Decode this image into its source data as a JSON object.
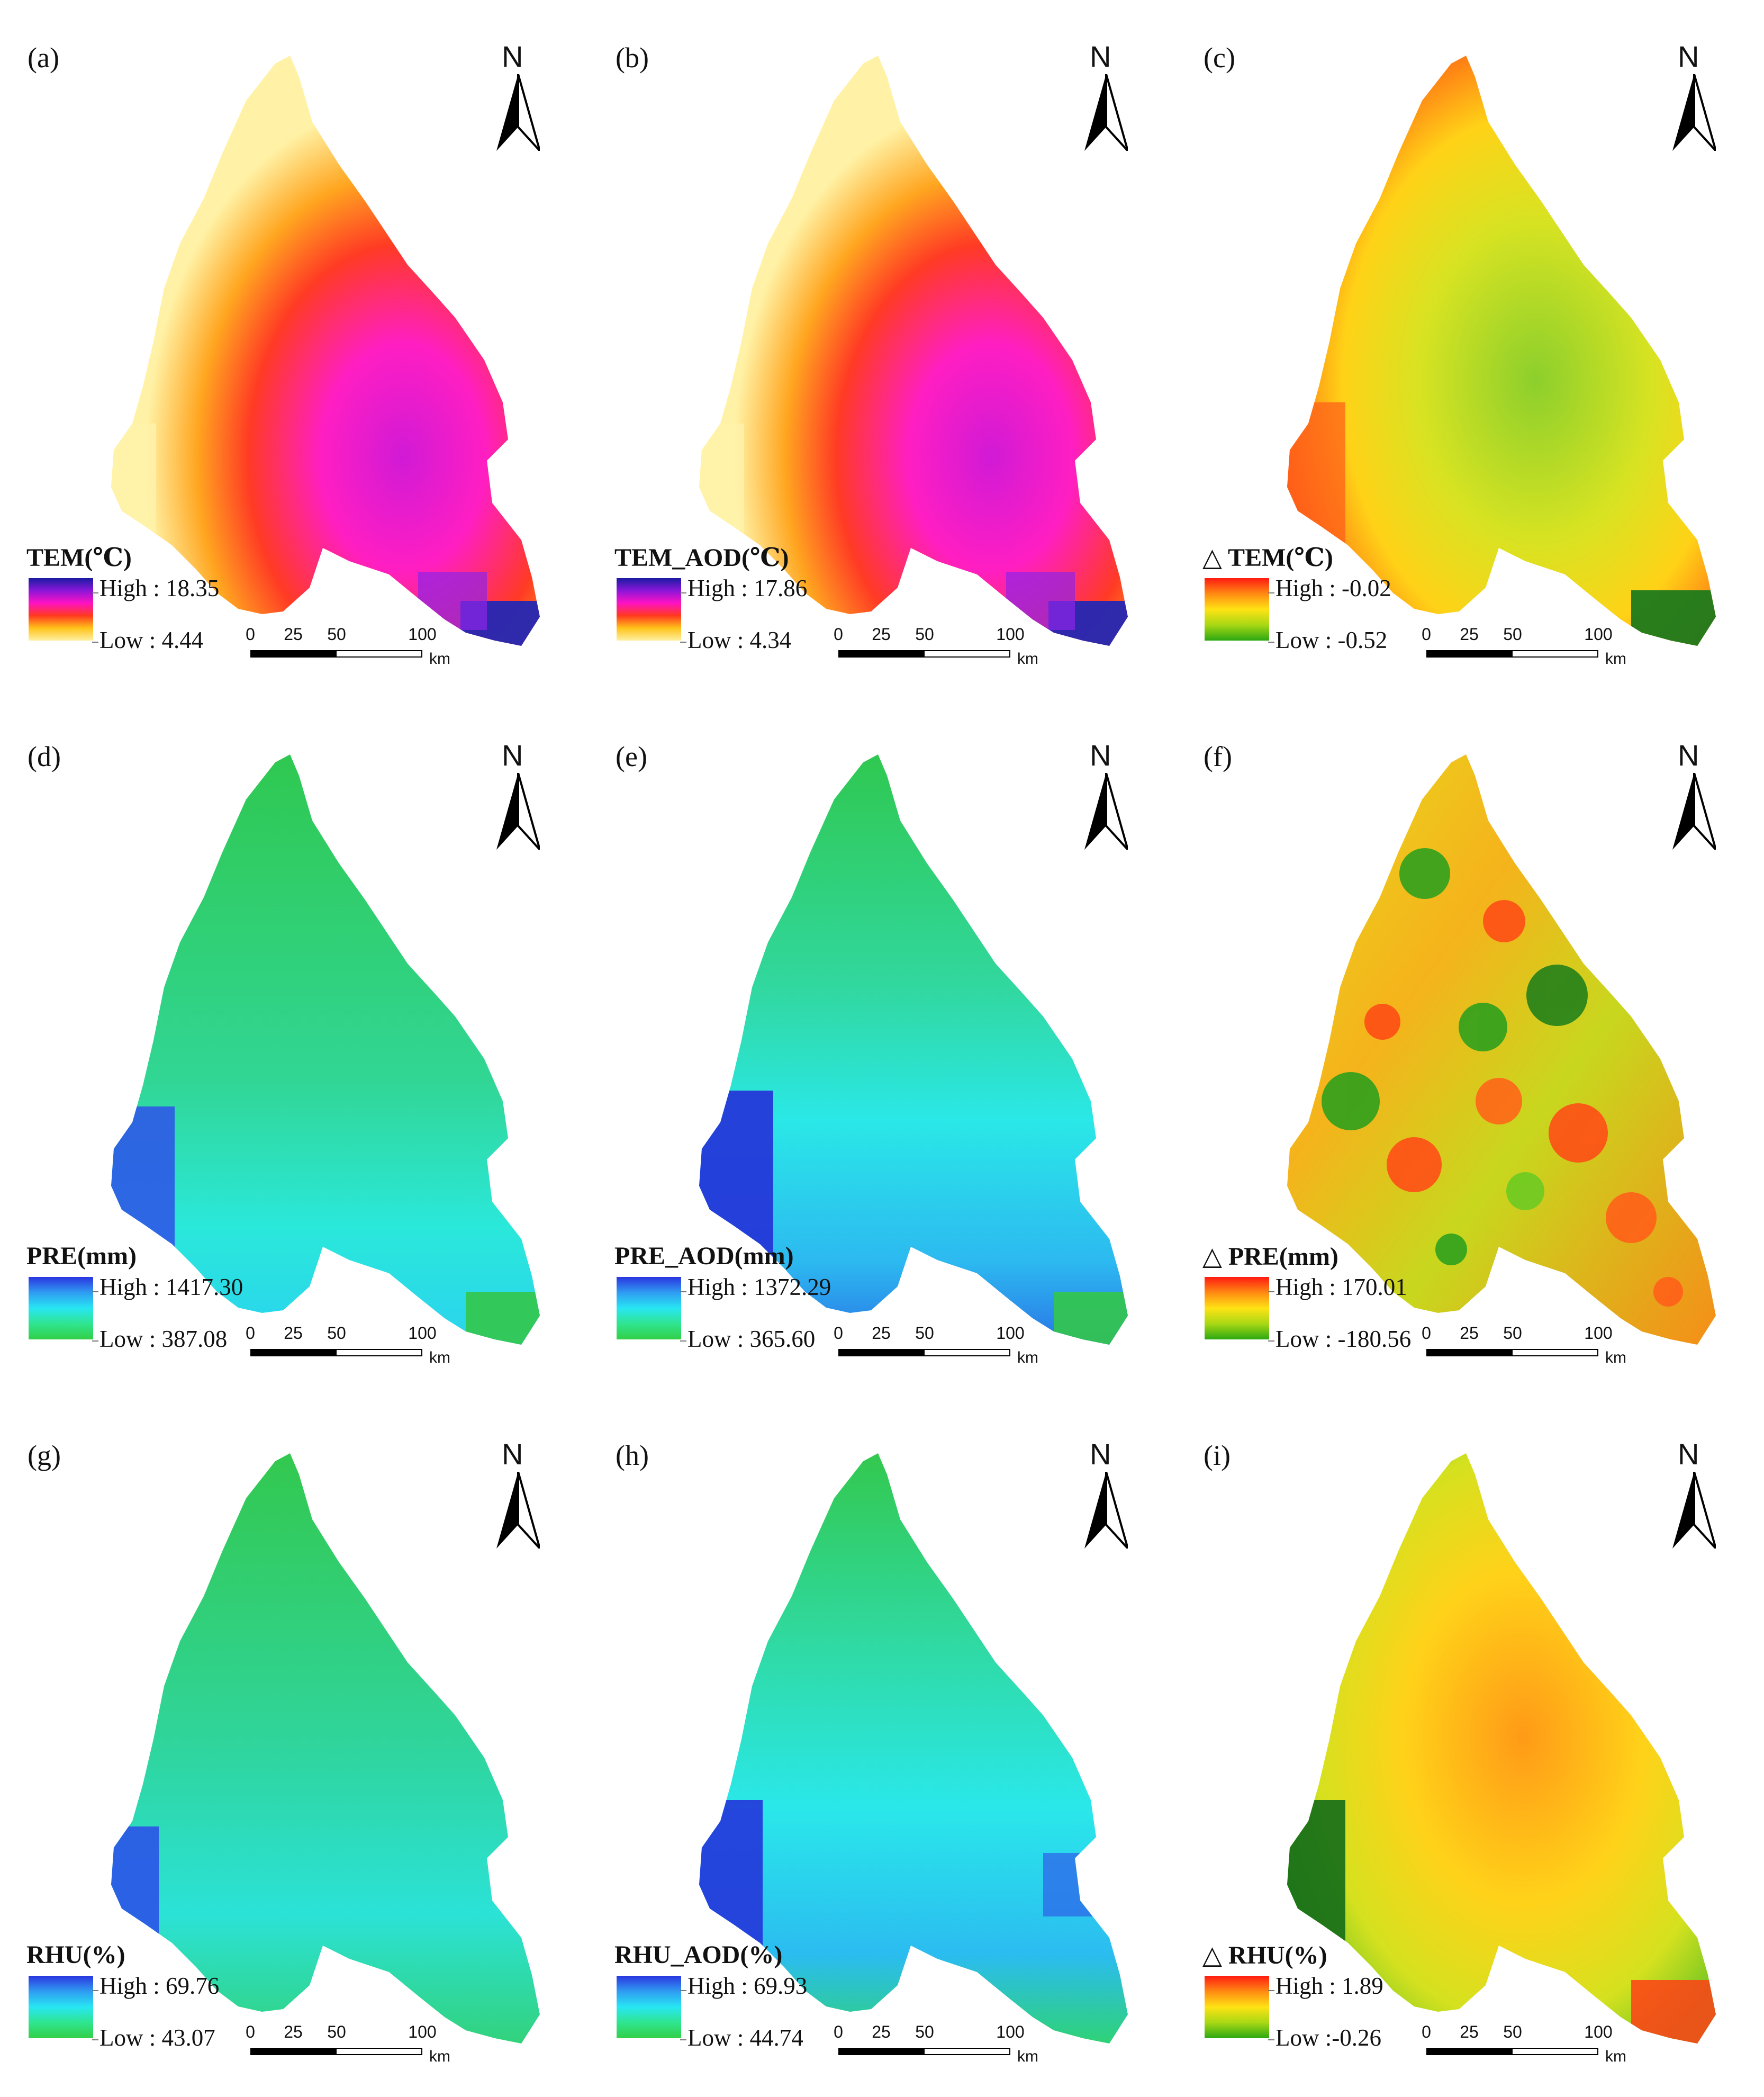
{
  "north_label": "N",
  "scalebar": {
    "ticks": [
      "0",
      "25",
      "50",
      "100"
    ],
    "unit": "km"
  },
  "panels": [
    {
      "label": "(a)",
      "legend_title": "TEM(℃)",
      "legend_high": "High : 18.35",
      "legend_low": "Low : 4.44",
      "legend_colors": [
        "#1a1aa3",
        "#8b16d8",
        "#ff12c4",
        "#ff3a1e",
        "#ffc31a",
        "#fff0a0"
      ]
    },
    {
      "label": "(b)",
      "legend_title": "TEM_AOD(℃)",
      "legend_high": "High : 17.86",
      "legend_low": "Low : 4.34",
      "legend_colors": [
        "#1a1aa3",
        "#8b16d8",
        "#ff12c4",
        "#ff3a1e",
        "#ffc31a",
        "#fff0a0"
      ]
    },
    {
      "label": "(c)",
      "legend_title": "△ TEM(℃)",
      "legend_high": "High : -0.02",
      "legend_low": "Low : -0.52",
      "legend_colors": [
        "#ff1a12",
        "#ff8a12",
        "#ffe314",
        "#a8d814",
        "#2ca812"
      ]
    },
    {
      "label": "(d)",
      "legend_title": "PRE(mm)",
      "legend_high": "High : 1417.30",
      "legend_low": "Low : 387.08",
      "legend_colors": [
        "#2a35e0",
        "#2f9cf2",
        "#27e6f3",
        "#2fe58f",
        "#33cf47"
      ]
    },
    {
      "label": "(e)",
      "legend_title": "PRE_AOD(mm)",
      "legend_high": "High : 1372.29",
      "legend_low": "Low : 365.60",
      "legend_colors": [
        "#2a35e0",
        "#2f9cf2",
        "#27e6f3",
        "#2fe58f",
        "#33cf47"
      ]
    },
    {
      "label": "(f)",
      "legend_title": "△ PRE(mm)",
      "legend_high": "High : 170.01",
      "legend_low": "Low : -180.56",
      "legend_colors": [
        "#ff1a12",
        "#ff8a12",
        "#ffe314",
        "#a8d814",
        "#2ca812"
      ]
    },
    {
      "label": "(g)",
      "legend_title": "RHU(%)",
      "legend_high": "High : 69.76",
      "legend_low": "Low : 43.07",
      "legend_colors": [
        "#2a35e0",
        "#2f9cf2",
        "#27e6f3",
        "#2fe58f",
        "#33cf47"
      ]
    },
    {
      "label": "(h)",
      "legend_title": "RHU_AOD(%)",
      "legend_high": "High : 69.93",
      "legend_low": "Low : 44.74",
      "legend_colors": [
        "#2a35e0",
        "#2f9cf2",
        "#27e6f3",
        "#2fe58f",
        "#33cf47"
      ]
    },
    {
      "label": "(i)",
      "legend_title": "△ RHU(%)",
      "legend_high": "High : 1.89",
      "legend_low": "Low :-0.26",
      "legend_colors": [
        "#ff1a12",
        "#ff8a12",
        "#ffe314",
        "#a8d814",
        "#2ca812"
      ]
    }
  ]
}
